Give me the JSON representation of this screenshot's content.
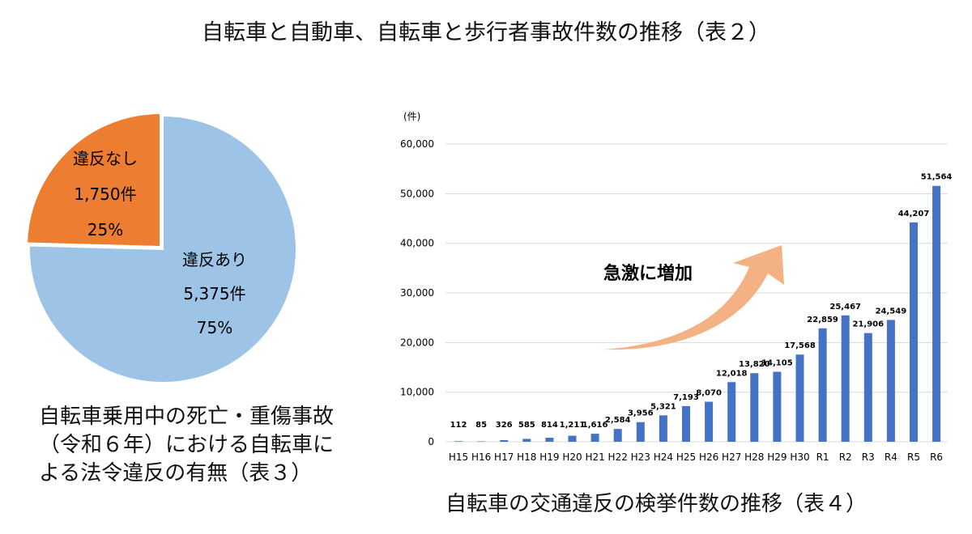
{
  "title": "自転車と自動車、自転車と歩行者事故件数の推移（表２）",
  "pie_caption": "自転車乗用中の死亡・重傷事故（令和６年）における自転車による法令違反の有無（表３）",
  "bar_caption": "自転車の交通違反の検挙件数の推移（表４）",
  "annotation": "急激に増加",
  "colors": {
    "pie_yes": "#9DC3E6",
    "pie_no": "#ED7D31",
    "bar": "#4472C4",
    "arrow": "#F4B183"
  },
  "chart_data": [
    {
      "type": "pie",
      "slices": [
        {
          "label": "違反あり",
          "count_label": "5,375件",
          "pct_label": "75%",
          "value": 5375
        },
        {
          "label": "違反なし",
          "count_label": "1,750件",
          "pct_label": "25%",
          "value": 1750
        }
      ]
    },
    {
      "type": "bar",
      "ylabel": "(件)",
      "ylim": [
        0,
        60000
      ],
      "yticks": [
        "0",
        "10,000",
        "20,000",
        "30,000",
        "40,000",
        "50,000",
        "60,000"
      ],
      "categories": [
        "H15",
        "H16",
        "H17",
        "H18",
        "H19",
        "H20",
        "H21",
        "H22",
        "H23",
        "H24",
        "H25",
        "H26",
        "H27",
        "H28",
        "H29",
        "H30",
        "R1",
        "R2",
        "R3",
        "R4",
        "R5",
        "R6"
      ],
      "values": [
        112,
        85,
        326,
        585,
        814,
        1211,
        1616,
        2584,
        3956,
        5321,
        7193,
        8070,
        12018,
        13820,
        14105,
        17568,
        22859,
        25467,
        21906,
        24549,
        44207,
        51564
      ],
      "labels": [
        "112",
        "85",
        "326",
        "585",
        "814",
        "1,211",
        "1,616",
        "2,584",
        "3,956",
        "5,321",
        "7,193",
        "8,070",
        "12,018",
        "13,820",
        "14,105",
        "17,568",
        "22,859",
        "25,467",
        "21,906",
        "24,549",
        "44,207",
        "51,564"
      ]
    }
  ]
}
